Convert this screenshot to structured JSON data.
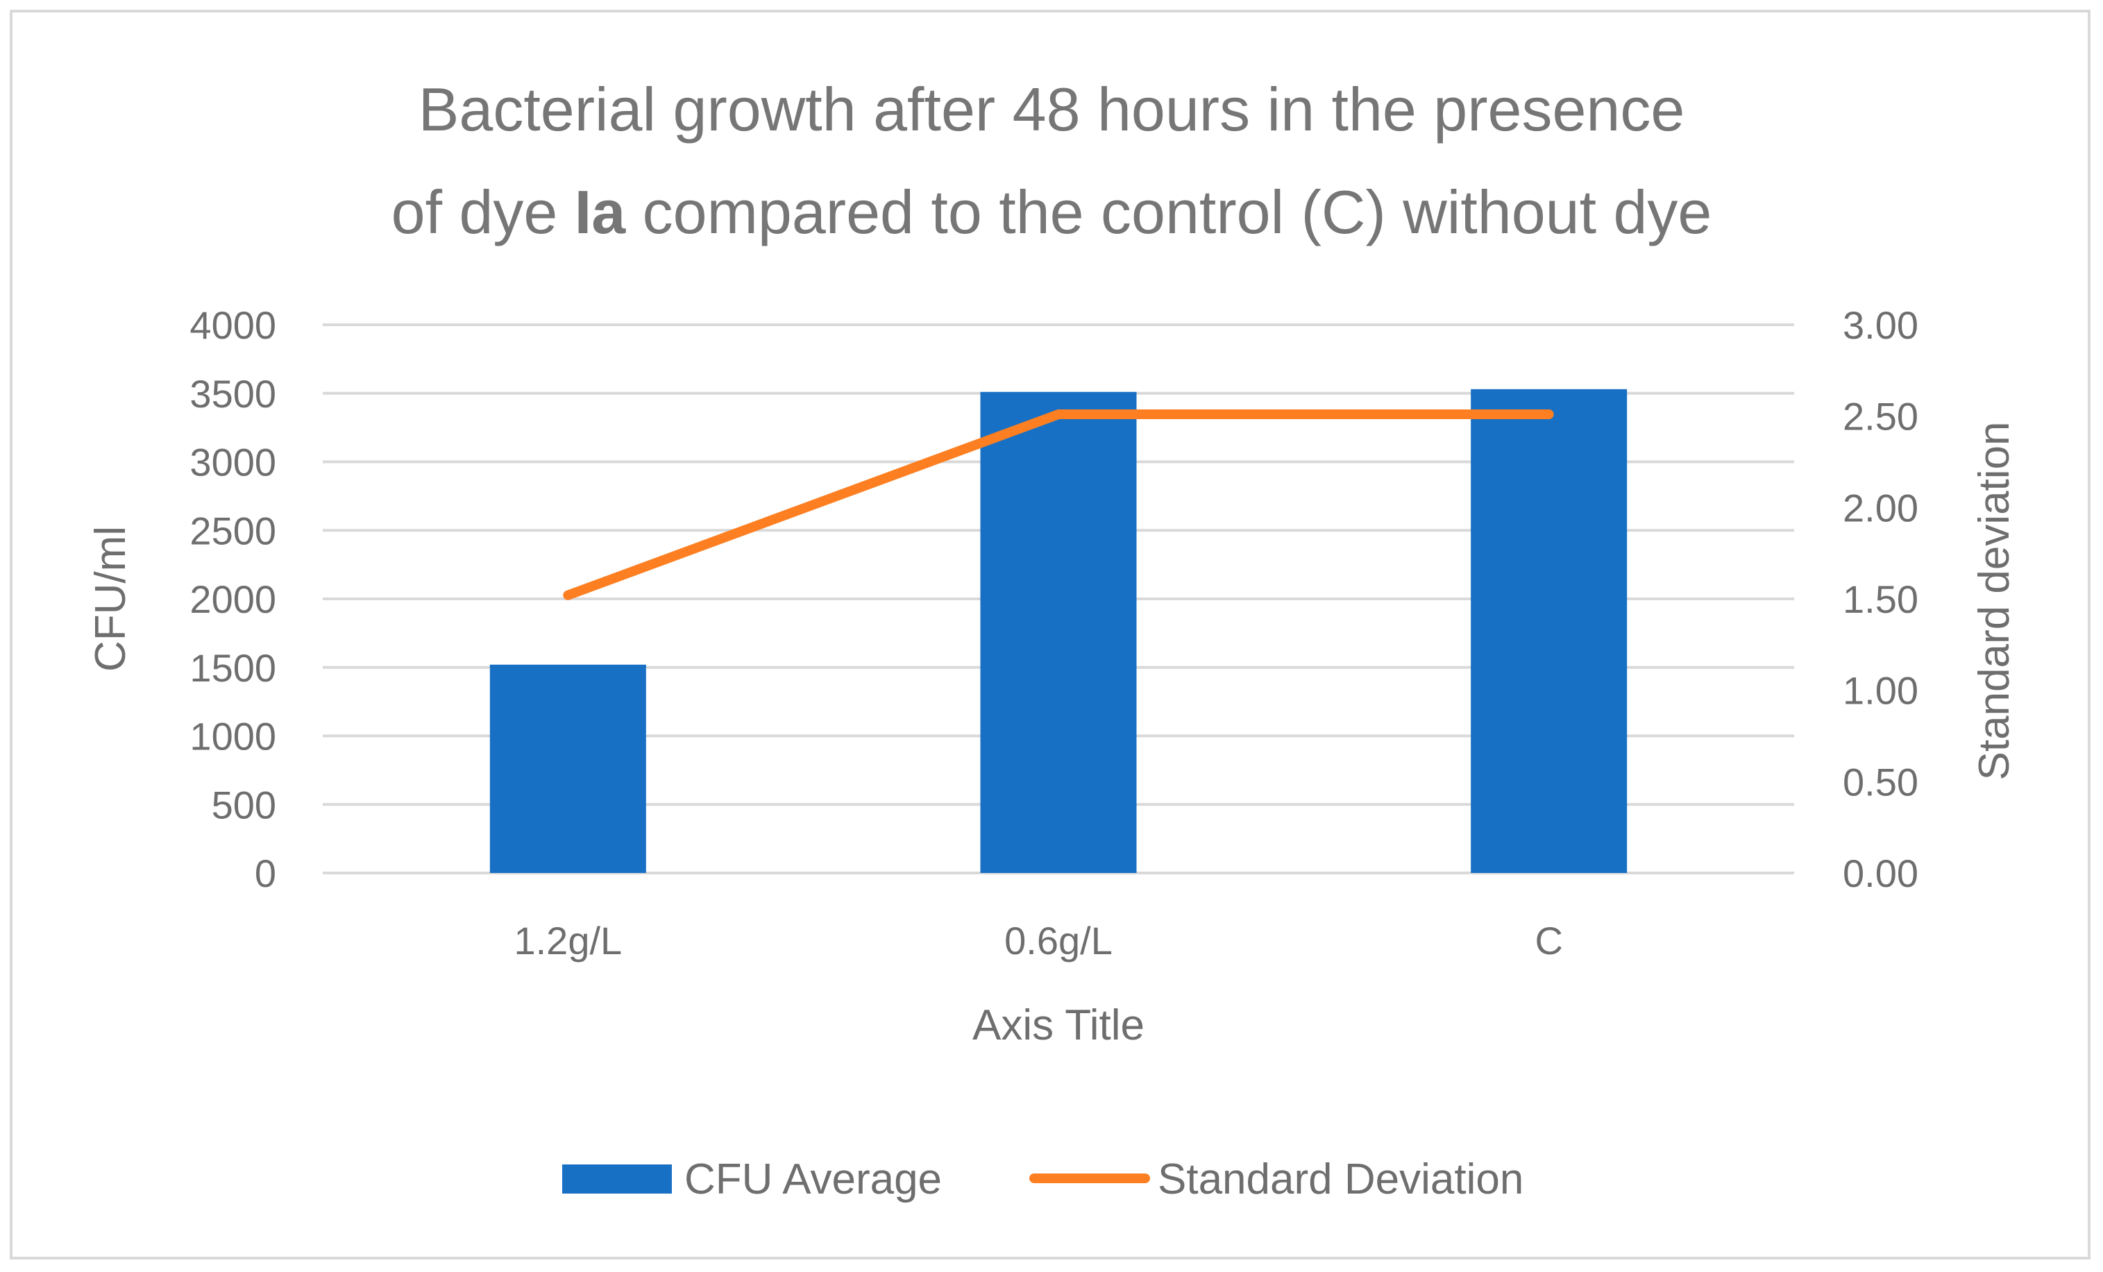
{
  "chart_data": {
    "type": "bar",
    "title_line1": "Bacterial growth after 48 hours in the presence",
    "title_line2_prefix": "of dye ",
    "title_line2_bold": "Ia",
    "title_line2_suffix": " compared to the control (C) without dye",
    "categories": [
      "1.2g/L",
      "0.6g/L",
      "C"
    ],
    "series": [
      {
        "name": "CFU Average",
        "type": "bar",
        "axis": "left",
        "color": "#1870c5",
        "values": [
          1520,
          3510,
          3530
        ]
      },
      {
        "name": "Standard Deviation",
        "type": "line",
        "axis": "right",
        "color": "#fd7f21",
        "values": [
          1.52,
          2.51,
          2.51
        ]
      }
    ],
    "xlabel": "Axis Title",
    "ylabel": "CFU/ml",
    "y2label": "Standard deviation",
    "ylim": [
      0,
      4000
    ],
    "y2lim": [
      0,
      3
    ],
    "yticks": [
      "0",
      "500",
      "1000",
      "1500",
      "2000",
      "2500",
      "3000",
      "3500",
      "4000"
    ],
    "y2ticks": [
      "0.00",
      "0.50",
      "1.00",
      "1.50",
      "2.00",
      "2.50",
      "3.00"
    ],
    "grid": true,
    "legend_position": "bottom",
    "gridline_color": "#d9d9d9",
    "text_color": "#6e6e6e"
  }
}
